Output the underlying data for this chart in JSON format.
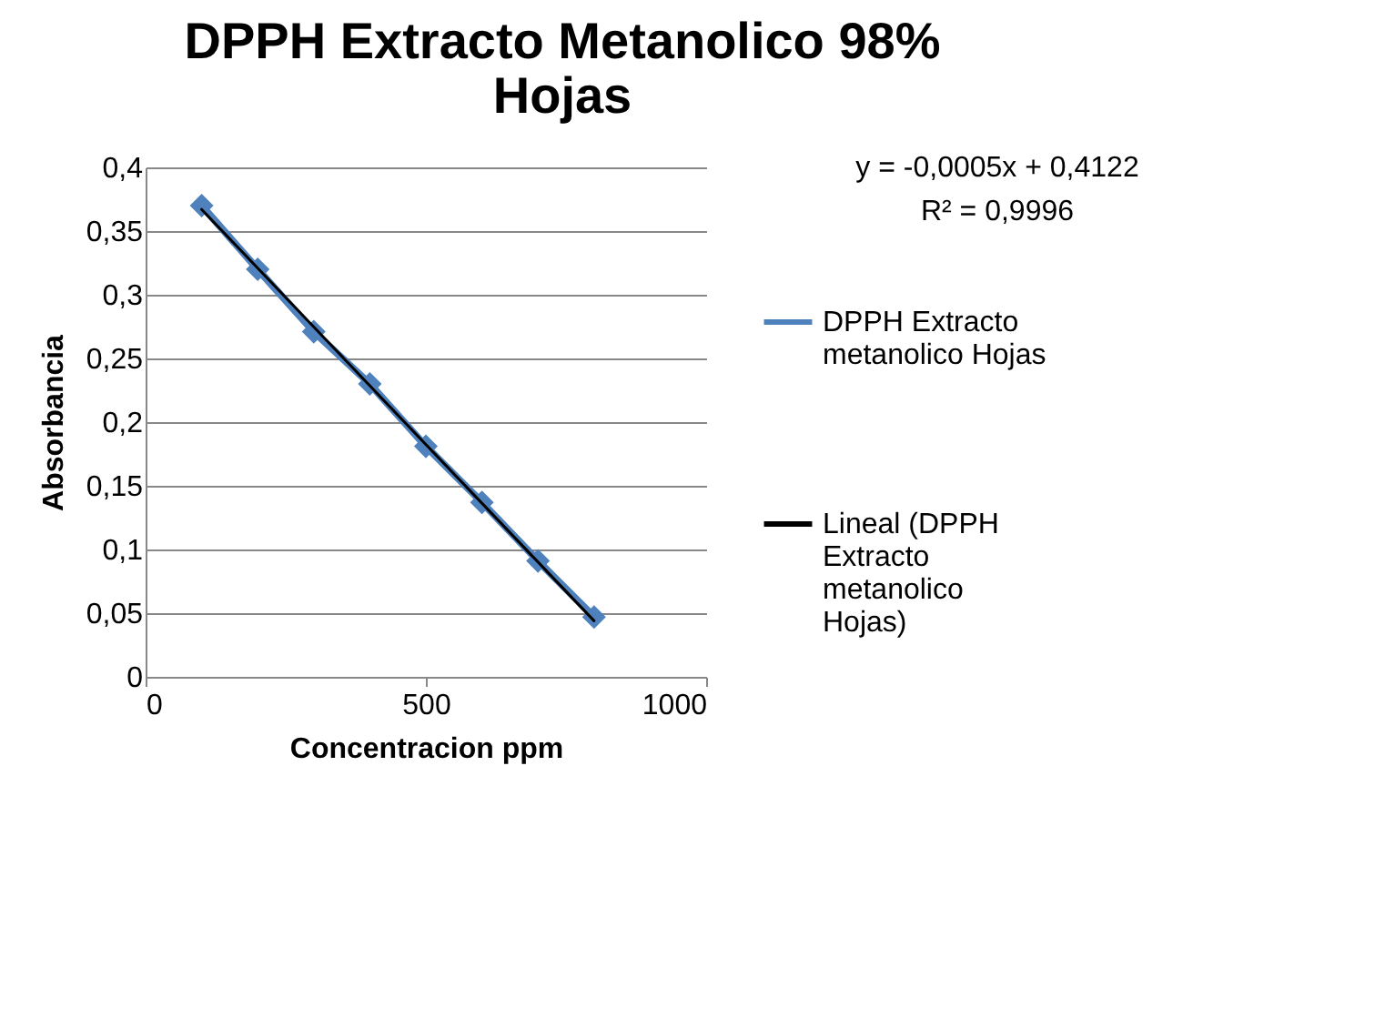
{
  "chart_data": {
    "type": "line",
    "title": "DPPH Extracto Metanolico 98% Hojas",
    "xlabel": "Concentracion ppm",
    "ylabel": "Absorbancia",
    "x": [
      100,
      200,
      300,
      400,
      500,
      600,
      700,
      800
    ],
    "series": [
      {
        "name": "DPPH Extracto metanolico Hojas",
        "color": "#4f81bd",
        "marker": "diamond",
        "values": [
          0.37,
          0.32,
          0.271,
          0.23,
          0.181,
          0.137,
          0.091,
          0.047
        ]
      },
      {
        "name": "Lineal (DPPH Extracto metanolico Hojas)",
        "color": "#000000",
        "type": "line",
        "marker": "none",
        "x": [
          100,
          800
        ],
        "values": [
          0.367,
          0.044
        ]
      }
    ],
    "annotations": [
      "y = -0,0005x + 0,4122",
      "R² = 0,9996"
    ],
    "xlim": [
      0,
      1000
    ],
    "xticks": [
      0,
      500,
      1000
    ],
    "ylim": [
      0,
      0.4
    ],
    "yticks": [
      0,
      {
        "value": 0.05,
        "label": "0,05"
      },
      {
        "value": 0.1,
        "label": "0,1"
      },
      {
        "value": 0.15,
        "label": "0,15"
      },
      {
        "value": 0.2,
        "label": "0,2"
      },
      {
        "value": 0.25,
        "label": "0,25"
      },
      {
        "value": 0.3,
        "label": "0,3"
      },
      {
        "value": 0.35,
        "label": "0,35"
      },
      {
        "value": 0.4,
        "label": "0,4"
      }
    ],
    "grid": "y",
    "legend": "right"
  }
}
